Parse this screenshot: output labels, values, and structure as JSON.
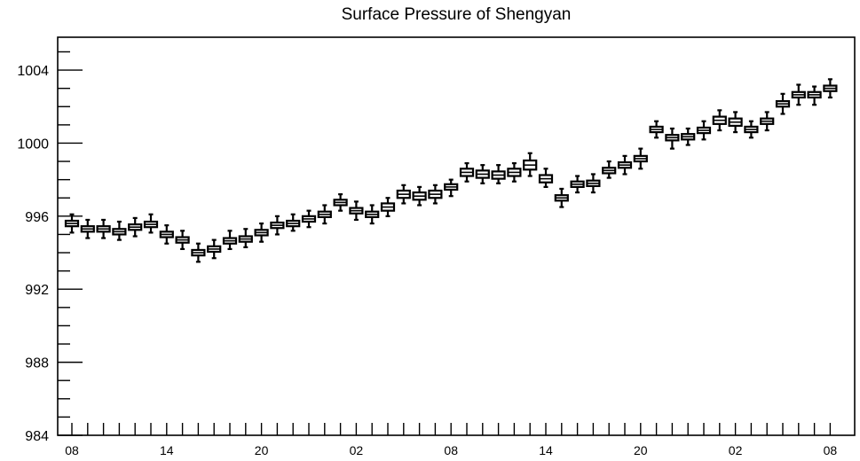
{
  "chart_data": {
    "type": "box",
    "title": "Surface Pressure of Shengyan",
    "xlabel": "",
    "ylabel": "",
    "ylim": [
      984,
      1005.8
    ],
    "y_ticks": [
      "1004",
      "1000",
      "996",
      "992",
      "988",
      "984"
    ],
    "y_tick_values": [
      1004,
      1000,
      996,
      992,
      988,
      984
    ],
    "x_tick_labels": [
      "08",
      "14",
      "20",
      "02",
      "08",
      "14",
      "20",
      "02",
      "08"
    ],
    "x_tick_label_indices": [
      0,
      6,
      12,
      18,
      24,
      30,
      36,
      42,
      48
    ],
    "grid": false,
    "series": [
      {
        "values": [
          {
            "index": 0,
            "median": 995.6,
            "q1": 995.45,
            "q3": 995.75,
            "min": 995.1,
            "max": 996.1
          },
          {
            "index": 1,
            "median": 995.3,
            "q1": 995.15,
            "q3": 995.45,
            "min": 994.8,
            "max": 995.8
          },
          {
            "index": 2,
            "median": 995.3,
            "q1": 995.15,
            "q3": 995.45,
            "min": 994.8,
            "max": 995.8
          },
          {
            "index": 3,
            "median": 995.15,
            "q1": 995.0,
            "q3": 995.3,
            "min": 994.7,
            "max": 995.7
          },
          {
            "index": 4,
            "median": 995.4,
            "q1": 995.25,
            "q3": 995.55,
            "min": 994.9,
            "max": 995.9
          },
          {
            "index": 5,
            "median": 995.55,
            "q1": 995.4,
            "q3": 995.7,
            "min": 995.1,
            "max": 996.1
          },
          {
            "index": 6,
            "median": 995.0,
            "q1": 994.85,
            "q3": 995.15,
            "min": 994.5,
            "max": 995.5
          },
          {
            "index": 7,
            "median": 994.7,
            "q1": 994.55,
            "q3": 994.85,
            "min": 994.2,
            "max": 995.2
          },
          {
            "index": 8,
            "median": 994.0,
            "q1": 993.85,
            "q3": 994.15,
            "min": 993.5,
            "max": 994.5
          },
          {
            "index": 9,
            "median": 994.2,
            "q1": 994.05,
            "q3": 994.35,
            "min": 993.7,
            "max": 994.7
          },
          {
            "index": 10,
            "median": 994.65,
            "q1": 994.5,
            "q3": 994.8,
            "min": 994.2,
            "max": 995.2
          },
          {
            "index": 11,
            "median": 994.75,
            "q1": 994.6,
            "q3": 994.9,
            "min": 994.3,
            "max": 995.3
          },
          {
            "index": 12,
            "median": 995.1,
            "q1": 994.95,
            "q3": 995.25,
            "min": 994.6,
            "max": 995.6
          },
          {
            "index": 13,
            "median": 995.5,
            "q1": 995.35,
            "q3": 995.65,
            "min": 995.0,
            "max": 996.0
          },
          {
            "index": 14,
            "median": 995.6,
            "q1": 995.45,
            "q3": 995.75,
            "min": 995.2,
            "max": 996.1
          },
          {
            "index": 15,
            "median": 995.85,
            "q1": 995.7,
            "q3": 996.0,
            "min": 995.4,
            "max": 996.3
          },
          {
            "index": 16,
            "median": 996.1,
            "q1": 995.95,
            "q3": 996.25,
            "min": 995.6,
            "max": 996.6
          },
          {
            "index": 17,
            "median": 996.75,
            "q1": 996.6,
            "q3": 996.9,
            "min": 996.3,
            "max": 997.2
          },
          {
            "index": 18,
            "median": 996.3,
            "q1": 996.15,
            "q3": 996.45,
            "min": 995.8,
            "max": 996.8
          },
          {
            "index": 19,
            "median": 996.1,
            "q1": 995.95,
            "q3": 996.25,
            "min": 995.6,
            "max": 996.6
          },
          {
            "index": 20,
            "median": 996.5,
            "q1": 996.3,
            "q3": 996.7,
            "min": 996.0,
            "max": 997.0
          },
          {
            "index": 21,
            "median": 997.2,
            "q1": 997.0,
            "q3": 997.4,
            "min": 996.7,
            "max": 997.7
          },
          {
            "index": 22,
            "median": 997.1,
            "q1": 996.9,
            "q3": 997.3,
            "min": 996.6,
            "max": 997.6
          },
          {
            "index": 23,
            "median": 997.2,
            "q1": 997.0,
            "q3": 997.4,
            "min": 996.7,
            "max": 997.7
          },
          {
            "index": 24,
            "median": 997.6,
            "q1": 997.45,
            "q3": 997.75,
            "min": 997.1,
            "max": 998.0
          },
          {
            "index": 25,
            "median": 998.4,
            "q1": 998.2,
            "q3": 998.6,
            "min": 997.9,
            "max": 998.9
          },
          {
            "index": 26,
            "median": 998.3,
            "q1": 998.1,
            "q3": 998.5,
            "min": 997.8,
            "max": 998.8
          },
          {
            "index": 27,
            "median": 998.25,
            "q1": 998.05,
            "q3": 998.45,
            "min": 997.8,
            "max": 998.8
          },
          {
            "index": 28,
            "median": 998.4,
            "q1": 998.2,
            "q3": 998.6,
            "min": 997.9,
            "max": 998.9
          },
          {
            "index": 29,
            "median": 998.8,
            "q1": 998.55,
            "q3": 999.05,
            "min": 998.2,
            "max": 999.45
          },
          {
            "index": 30,
            "median": 998.05,
            "q1": 997.85,
            "q3": 998.25,
            "min": 997.6,
            "max": 998.6
          },
          {
            "index": 31,
            "median": 997.0,
            "q1": 996.85,
            "q3": 997.15,
            "min": 996.5,
            "max": 997.5
          },
          {
            "index": 32,
            "median": 997.75,
            "q1": 997.6,
            "q3": 997.9,
            "min": 997.3,
            "max": 998.2
          },
          {
            "index": 33,
            "median": 997.8,
            "q1": 997.65,
            "q3": 997.95,
            "min": 997.3,
            "max": 998.3
          },
          {
            "index": 34,
            "median": 998.5,
            "q1": 998.35,
            "q3": 998.65,
            "min": 998.1,
            "max": 999.0
          },
          {
            "index": 35,
            "median": 998.8,
            "q1": 998.65,
            "q3": 998.95,
            "min": 998.3,
            "max": 999.3
          },
          {
            "index": 36,
            "median": 999.15,
            "q1": 999.0,
            "q3": 999.3,
            "min": 998.6,
            "max": 999.7
          },
          {
            "index": 37,
            "median": 1000.75,
            "q1": 1000.6,
            "q3": 1000.9,
            "min": 1000.3,
            "max": 1001.2
          },
          {
            "index": 38,
            "median": 1000.3,
            "q1": 1000.15,
            "q3": 1000.45,
            "min": 999.7,
            "max": 1000.8
          },
          {
            "index": 39,
            "median": 1000.35,
            "q1": 1000.2,
            "q3": 1000.5,
            "min": 999.9,
            "max": 1000.8
          },
          {
            "index": 40,
            "median": 1000.7,
            "q1": 1000.55,
            "q3": 1000.85,
            "min": 1000.2,
            "max": 1001.2
          },
          {
            "index": 41,
            "median": 1001.25,
            "q1": 1001.05,
            "q3": 1001.45,
            "min": 1000.7,
            "max": 1001.8
          },
          {
            "index": 42,
            "median": 1001.15,
            "q1": 1000.95,
            "q3": 1001.35,
            "min": 1000.6,
            "max": 1001.7
          },
          {
            "index": 43,
            "median": 1000.75,
            "q1": 1000.6,
            "q3": 1000.9,
            "min": 1000.3,
            "max": 1001.2
          },
          {
            "index": 44,
            "median": 1001.2,
            "q1": 1001.05,
            "q3": 1001.35,
            "min": 1000.7,
            "max": 1001.7
          },
          {
            "index": 45,
            "median": 1002.15,
            "q1": 1002.0,
            "q3": 1002.3,
            "min": 1001.6,
            "max": 1002.7
          },
          {
            "index": 46,
            "median": 1002.65,
            "q1": 1002.5,
            "q3": 1002.8,
            "min": 1002.1,
            "max": 1003.2
          },
          {
            "index": 47,
            "median": 1002.65,
            "q1": 1002.5,
            "q3": 1002.8,
            "min": 1002.1,
            "max": 1003.1
          },
          {
            "index": 48,
            "median": 1003.0,
            "q1": 1002.85,
            "q3": 1003.15,
            "min": 1002.5,
            "max": 1003.5
          }
        ]
      }
    ]
  }
}
